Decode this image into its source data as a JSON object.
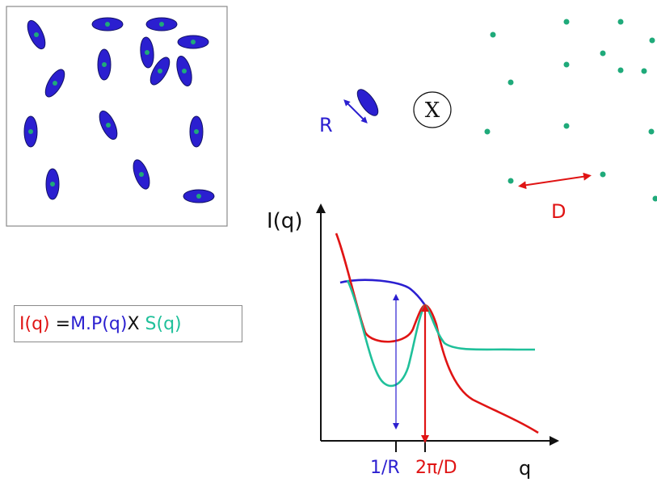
{
  "colors": {
    "particle": "#2b1fd0",
    "particle_outline": "#111166",
    "lattice": "#1faa7a",
    "intensity": "#e01414",
    "form_factor": "#2b1fd0",
    "structure_factor": "#1fc09a",
    "axis": "#111111"
  },
  "labels": {
    "R": "R",
    "convolution": "X",
    "D": "D",
    "y_axis": "I(q)",
    "x_axis": "q",
    "tick_1_over_R": "1/R",
    "tick_2pi_over_D": "2π/D"
  },
  "formula": {
    "I": "I(q)",
    "equals": " =",
    "MP": "M.P(q)",
    "times": "X ",
    "S": "S(q)"
  }
}
